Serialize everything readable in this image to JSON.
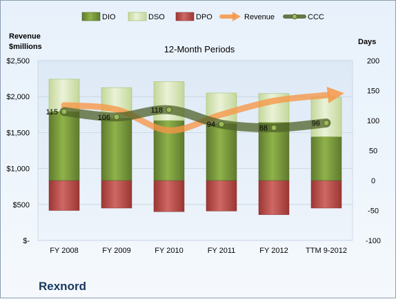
{
  "company": "Rexnord",
  "chart_data": {
    "type": "bar",
    "title": "12-Month Periods",
    "categories": [
      "FY 2008",
      "FY 2009",
      "FY 2010",
      "FY 2011",
      "FY 2012",
      "TTM 9-2012"
    ],
    "y_left": {
      "label": "Revenue\n$millions",
      "range": [
        0,
        2500
      ],
      "ticks": [
        "$-",
        "$500",
        "$1,000",
        "$1,500",
        "$2,000",
        "$2,500"
      ]
    },
    "y_right": {
      "label": "Days",
      "range": [
        -100,
        200
      ],
      "ticks": [
        "-100",
        "-50",
        "0",
        "50",
        "100",
        "150",
        "200"
      ]
    },
    "legend": {
      "placement": "top"
    },
    "series": [
      {
        "name": "DIO",
        "axis": "right",
        "color": "#77933c",
        "values": [
          115,
          104,
          100,
          95,
          97,
          73
        ]
      },
      {
        "name": "DSO",
        "axis": "right",
        "color": "#d7e4bd",
        "values": [
          54,
          51,
          65,
          51,
          48,
          66
        ]
      },
      {
        "name": "DPO",
        "axis": "right",
        "color": "#c0504d",
        "values": [
          -50,
          -46,
          -52,
          -51,
          -57,
          -46
        ]
      },
      {
        "name": "Revenue",
        "axis": "left",
        "color": "#f79646",
        "values": [
          1880,
          1820,
          1530,
          1750,
          1940,
          2020
        ]
      },
      {
        "name": "CCC",
        "axis": "right",
        "color": "#4f6228",
        "values": [
          115,
          106,
          118,
          94,
          88,
          96
        ],
        "labels": [
          "115",
          "106",
          "118",
          "94",
          "88",
          "96"
        ]
      }
    ]
  }
}
